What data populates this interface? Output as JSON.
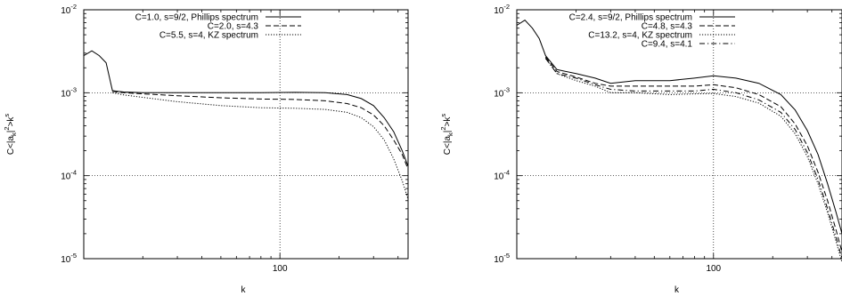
{
  "chart_data": [
    {
      "type": "line",
      "title": "",
      "xlabel": "k",
      "ylabel": "C<|a_k|^2>k^s",
      "xscale": "log",
      "yscale": "log",
      "xlim": [
        10,
        450
      ],
      "ylim": [
        1e-05,
        0.01
      ],
      "x_tick_labels": [
        "100"
      ],
      "y_tick_labels": [
        {
          "base": "10",
          "exp": "-5"
        },
        {
          "base": "10",
          "exp": "-4"
        },
        {
          "base": "10",
          "exp": "-3"
        },
        {
          "base": "10",
          "exp": "-2"
        }
      ],
      "grid": true,
      "legend_position": "top-right",
      "series": [
        {
          "name": "C=1.0, s=9/2, Phillips spectrum",
          "dash": "solid",
          "points": [
            [
              10,
              0.0028
            ],
            [
              11,
              0.0032
            ],
            [
              12,
              0.0028
            ],
            [
              13,
              0.0023
            ],
            [
              14,
              0.00106
            ],
            [
              16,
              0.00102
            ],
            [
              20,
              0.001
            ],
            [
              30,
              0.001
            ],
            [
              50,
              0.001
            ],
            [
              80,
              0.001
            ],
            [
              120,
              0.00101
            ],
            [
              170,
              0.001
            ],
            [
              220,
              0.00095
            ],
            [
              260,
              0.00085
            ],
            [
              300,
              0.0007
            ],
            [
              340,
              0.0005
            ],
            [
              380,
              0.00034
            ],
            [
              420,
              0.0002
            ],
            [
              450,
              0.00013
            ]
          ]
        },
        {
          "name": "C=2.0, s=4.3",
          "dash": "dashed",
          "points": [
            [
              14,
              0.00104
            ],
            [
              16,
              0.001
            ],
            [
              20,
              0.00097
            ],
            [
              30,
              0.00092
            ],
            [
              50,
              0.00087
            ],
            [
              80,
              0.00084
            ],
            [
              120,
              0.00083
            ],
            [
              170,
              0.0008
            ],
            [
              220,
              0.00074
            ],
            [
              260,
              0.00066
            ],
            [
              300,
              0.00054
            ],
            [
              340,
              0.0004
            ],
            [
              380,
              0.00027
            ],
            [
              420,
              0.00018
            ],
            [
              450,
              0.00012
            ]
          ]
        },
        {
          "name": "C=5.5, s=4, KZ spectrum",
          "dash": "dotted",
          "points": [
            [
              14,
              0.001
            ],
            [
              16,
              0.00094
            ],
            [
              20,
              0.00088
            ],
            [
              30,
              0.00078
            ],
            [
              50,
              0.0007
            ],
            [
              80,
              0.00066
            ],
            [
              120,
              0.00065
            ],
            [
              170,
              0.00063
            ],
            [
              220,
              0.00058
            ],
            [
              260,
              0.0005
            ],
            [
              300,
              0.00039
            ],
            [
              340,
              0.00027
            ],
            [
              380,
              0.00016
            ],
            [
              420,
              8.7e-05
            ],
            [
              450,
              5.2e-05
            ]
          ]
        }
      ]
    },
    {
      "type": "line",
      "title": "",
      "xlabel": "k",
      "ylabel": "C<|a_k|^2>k^s",
      "xscale": "log",
      "yscale": "log",
      "xlim": [
        10,
        450
      ],
      "ylim": [
        1e-05,
        0.01
      ],
      "x_tick_labels": [
        "100"
      ],
      "y_tick_labels": [
        {
          "base": "10",
          "exp": "-5"
        },
        {
          "base": "10",
          "exp": "-4"
        },
        {
          "base": "10",
          "exp": "-3"
        },
        {
          "base": "10",
          "exp": "-2"
        }
      ],
      "grid": true,
      "legend_position": "top-right",
      "series": [
        {
          "name": "C=2.4, s=9/2, Phillips spectrum",
          "dash": "solid",
          "points": [
            [
              10,
              0.0065
            ],
            [
              11,
              0.0075
            ],
            [
              12,
              0.006
            ],
            [
              13,
              0.0045
            ],
            [
              14,
              0.0028
            ],
            [
              16,
              0.0019
            ],
            [
              20,
              0.0017
            ],
            [
              25,
              0.0015
            ],
            [
              30,
              0.0013
            ],
            [
              40,
              0.0014
            ],
            [
              60,
              0.0014
            ],
            [
              80,
              0.0015
            ],
            [
              100,
              0.0016
            ],
            [
              130,
              0.0015
            ],
            [
              170,
              0.0013
            ],
            [
              220,
              0.00095
            ],
            [
              260,
              0.00062
            ],
            [
              300,
              0.00035
            ],
            [
              340,
              0.00018
            ],
            [
              380,
              8e-05
            ],
            [
              420,
              3.6e-05
            ],
            [
              450,
              2e-05
            ]
          ]
        },
        {
          "name": "C=4.8, s=4.3",
          "dash": "dashed",
          "points": [
            [
              14,
              0.0027
            ],
            [
              16,
              0.0018
            ],
            [
              20,
              0.00155
            ],
            [
              25,
              0.0013
            ],
            [
              30,
              0.0012
            ],
            [
              40,
              0.0012
            ],
            [
              60,
              0.0012
            ],
            [
              80,
              0.0012
            ],
            [
              100,
              0.00125
            ],
            [
              130,
              0.00115
            ],
            [
              170,
              0.00095
            ],
            [
              220,
              0.00068
            ],
            [
              260,
              0.00042
            ],
            [
              300,
              0.00023
            ],
            [
              340,
              0.00011
            ],
            [
              380,
              5e-05
            ],
            [
              420,
              2.2e-05
            ],
            [
              450,
              1.2e-05
            ]
          ]
        },
        {
          "name": "C=13.2, s=4, KZ spectrum",
          "dash": "dotted",
          "points": [
            [
              14,
              0.0026
            ],
            [
              16,
              0.0017
            ],
            [
              20,
              0.0014
            ],
            [
              25,
              0.0012
            ],
            [
              30,
              0.001
            ],
            [
              40,
              0.001
            ],
            [
              60,
              0.00095
            ],
            [
              80,
              0.00097
            ],
            [
              100,
              0.00098
            ],
            [
              130,
              0.0009
            ],
            [
              170,
              0.00075
            ],
            [
              220,
              0.00052
            ],
            [
              260,
              0.00032
            ],
            [
              300,
              0.00017
            ],
            [
              340,
              8e-05
            ],
            [
              380,
              3.6e-05
            ],
            [
              420,
              1.6e-05
            ],
            [
              450,
              9e-06
            ]
          ]
        },
        {
          "name": "C=9.4, s=4.1",
          "dash": "dashdot",
          "points": [
            [
              14,
              0.0026
            ],
            [
              16,
              0.0017
            ],
            [
              20,
              0.0015
            ],
            [
              25,
              0.00125
            ],
            [
              30,
              0.0011
            ],
            [
              40,
              0.00105
            ],
            [
              60,
              0.00105
            ],
            [
              80,
              0.00105
            ],
            [
              100,
              0.0011
            ],
            [
              130,
              0.001
            ],
            [
              170,
              0.00082
            ],
            [
              220,
              0.00058
            ],
            [
              260,
              0.00036
            ],
            [
              300,
              0.00019
            ],
            [
              340,
              9e-05
            ],
            [
              380,
              4e-05
            ],
            [
              420,
              1.8e-05
            ],
            [
              450,
              1e-05
            ]
          ]
        }
      ]
    }
  ]
}
